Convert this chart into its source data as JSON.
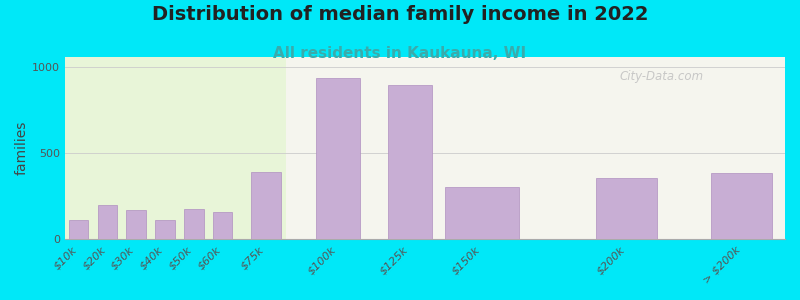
{
  "title": "Distribution of median family income in 2022",
  "subtitle": "All residents in Kaukauna, WI",
  "ylabel": "families",
  "categories": [
    "$10k",
    "$20k",
    "$30k",
    "$40k",
    "$50k",
    "$60k",
    "$75k",
    "$100k",
    "$125k",
    "$150k",
    "$200k",
    "> $200k"
  ],
  "x_positions": [
    10,
    20,
    30,
    40,
    50,
    60,
    75,
    100,
    125,
    150,
    200,
    240
  ],
  "bar_widths": [
    8,
    8,
    8,
    8,
    8,
    8,
    12,
    18,
    18,
    30,
    25,
    25
  ],
  "values": [
    110,
    200,
    170,
    110,
    175,
    160,
    390,
    940,
    895,
    305,
    355,
    385
  ],
  "bar_color": "#c8aed4",
  "bar_edge_color": "#b090c0",
  "background_outer": "#00e8f8",
  "background_plot_left": "#e8f5d8",
  "background_plot_right": "#f5f5ee",
  "title_fontsize": 14,
  "subtitle_fontsize": 11,
  "subtitle_color": "#3aabab",
  "ylabel_fontsize": 10,
  "tick_label_fontsize": 8,
  "yticks": [
    0,
    500,
    1000
  ],
  "ylim": [
    0,
    1060
  ],
  "watermark_text": "City-Data.com",
  "watermark_color": "#c0c0c0",
  "green_cutoff": 82
}
